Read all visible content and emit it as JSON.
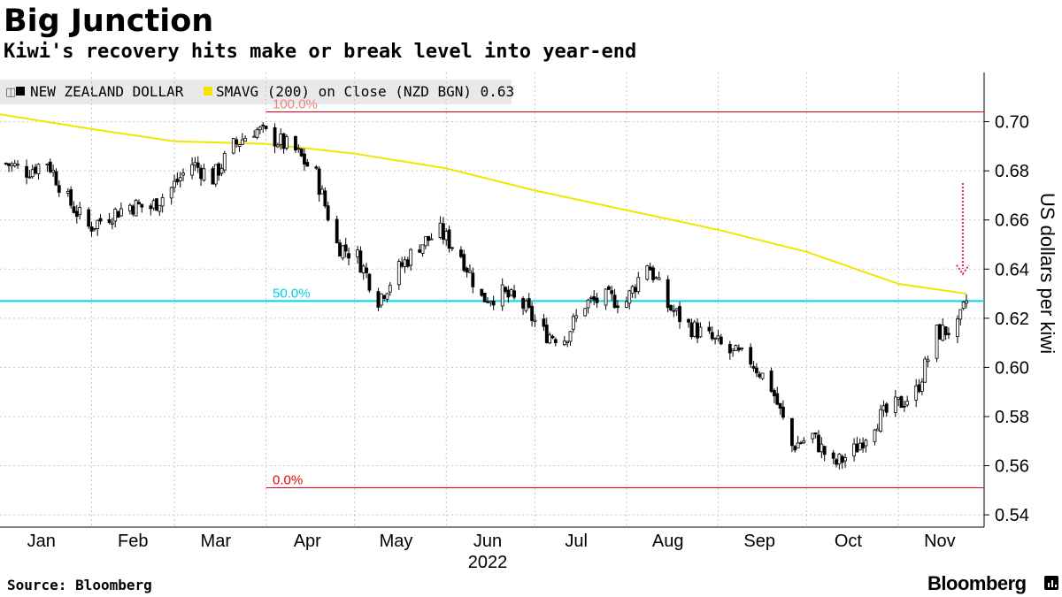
{
  "header": {
    "title": "Big Junction",
    "subtitle": "Kiwi's recovery hits make or break level into year-end"
  },
  "legend": {
    "icon": "chart-settings-icon",
    "items": [
      {
        "label": "NEW ZEALAND DOLLAR",
        "color": "#000000"
      },
      {
        "label": "SMAVG (200)  on Close (NZD BGN) 0.63",
        "color": "#f2e600"
      }
    ]
  },
  "footer": {
    "source": "Source: Bloomberg",
    "brand": "Bloomberg"
  },
  "chart_data": {
    "type": "candlestick",
    "title": "Big Junction",
    "subtitle": "Kiwi's recovery hits make or break level into year-end",
    "ylabel": "US dollars per kiwi",
    "ylim": [
      0.535,
      0.72
    ],
    "y_ticks": [
      0.54,
      0.56,
      0.58,
      0.6,
      0.62,
      0.64,
      0.66,
      0.68,
      0.7
    ],
    "y_tick_labels": [
      "0.54",
      "0.56",
      "0.58",
      "0.60",
      "0.62",
      "0.64",
      "0.66",
      "0.68",
      "0.70"
    ],
    "x_tick_labels": [
      "Jan",
      "Feb",
      "Mar",
      "Apr",
      "May",
      "Jun",
      "Jul",
      "Aug",
      "Sep",
      "Oct",
      "Nov"
    ],
    "x_year_label": "2022",
    "grid": true,
    "series": [
      {
        "name": "NEW ZEALAND DOLLAR",
        "kind": "daily OHLC",
        "color": "#000000",
        "close_path": [
          [
            "2022-01-03",
            0.683
          ],
          [
            "2022-01-10",
            0.68
          ],
          [
            "2022-01-17",
            0.684
          ],
          [
            "2022-01-24",
            0.668
          ],
          [
            "2022-01-31",
            0.657
          ],
          [
            "2022-02-07",
            0.662
          ],
          [
            "2022-02-14",
            0.666
          ],
          [
            "2022-02-21",
            0.665
          ],
          [
            "2022-02-28",
            0.673
          ],
          [
            "2022-03-07",
            0.683
          ],
          [
            "2022-03-14",
            0.677
          ],
          [
            "2022-03-21",
            0.69
          ],
          [
            "2022-03-28",
            0.697
          ],
          [
            "2022-04-04",
            0.693
          ],
          [
            "2022-04-11",
            0.688
          ],
          [
            "2022-04-18",
            0.678
          ],
          [
            "2022-04-25",
            0.65
          ],
          [
            "2022-05-02",
            0.645
          ],
          [
            "2022-05-09",
            0.628
          ],
          [
            "2022-05-16",
            0.64
          ],
          [
            "2022-05-23",
            0.65
          ],
          [
            "2022-05-30",
            0.655
          ],
          [
            "2022-06-06",
            0.646
          ],
          [
            "2022-06-13",
            0.628
          ],
          [
            "2022-06-20",
            0.63
          ],
          [
            "2022-06-27",
            0.625
          ],
          [
            "2022-07-04",
            0.614
          ],
          [
            "2022-07-11",
            0.612
          ],
          [
            "2022-07-18",
            0.626
          ],
          [
            "2022-07-25",
            0.628
          ],
          [
            "2022-08-01",
            0.627
          ],
          [
            "2022-08-08",
            0.643
          ],
          [
            "2022-08-15",
            0.625
          ],
          [
            "2022-08-22",
            0.617
          ],
          [
            "2022-08-29",
            0.612
          ],
          [
            "2022-09-05",
            0.606
          ],
          [
            "2022-09-12",
            0.603
          ],
          [
            "2022-09-19",
            0.592
          ],
          [
            "2022-09-26",
            0.568
          ],
          [
            "2022-10-03",
            0.572
          ],
          [
            "2022-10-10",
            0.56
          ],
          [
            "2022-10-17",
            0.566
          ],
          [
            "2022-10-24",
            0.578
          ],
          [
            "2022-10-31",
            0.584
          ],
          [
            "2022-11-07",
            0.59
          ],
          [
            "2022-11-14",
            0.614
          ],
          [
            "2022-11-21",
            0.616
          ],
          [
            "2022-11-24",
            0.627
          ]
        ]
      },
      {
        "name": "SMAVG (200)  on Close (NZD BGN) 0.63",
        "kind": "moving average",
        "color": "#f2e600",
        "x": [
          "2022-01-01",
          "2022-02-01",
          "2022-03-01",
          "2022-04-01",
          "2022-05-01",
          "2022-06-01",
          "2022-07-01",
          "2022-08-01",
          "2022-09-01",
          "2022-10-01",
          "2022-11-01",
          "2022-11-24"
        ],
        "values": [
          0.703,
          0.697,
          0.692,
          0.691,
          0.687,
          0.681,
          0.672,
          0.664,
          0.656,
          0.647,
          0.634,
          0.63
        ]
      }
    ],
    "reference_lines": [
      {
        "label": "100.0%",
        "value": 0.704,
        "color": "#e8000b",
        "label_color": "#f08080"
      },
      {
        "label": "50.0%",
        "value": 0.627,
        "color": "#00d8e8",
        "label_color": "#00d0e0"
      },
      {
        "label": "0.0%",
        "value": 0.551,
        "color": "#e8000b",
        "label_color": "#e8000b"
      }
    ],
    "annotation": {
      "kind": "dotted arrow pointing down",
      "color": "#e8283c",
      "from": 0.675,
      "to": 0.638,
      "date": "2022-11-21"
    }
  }
}
